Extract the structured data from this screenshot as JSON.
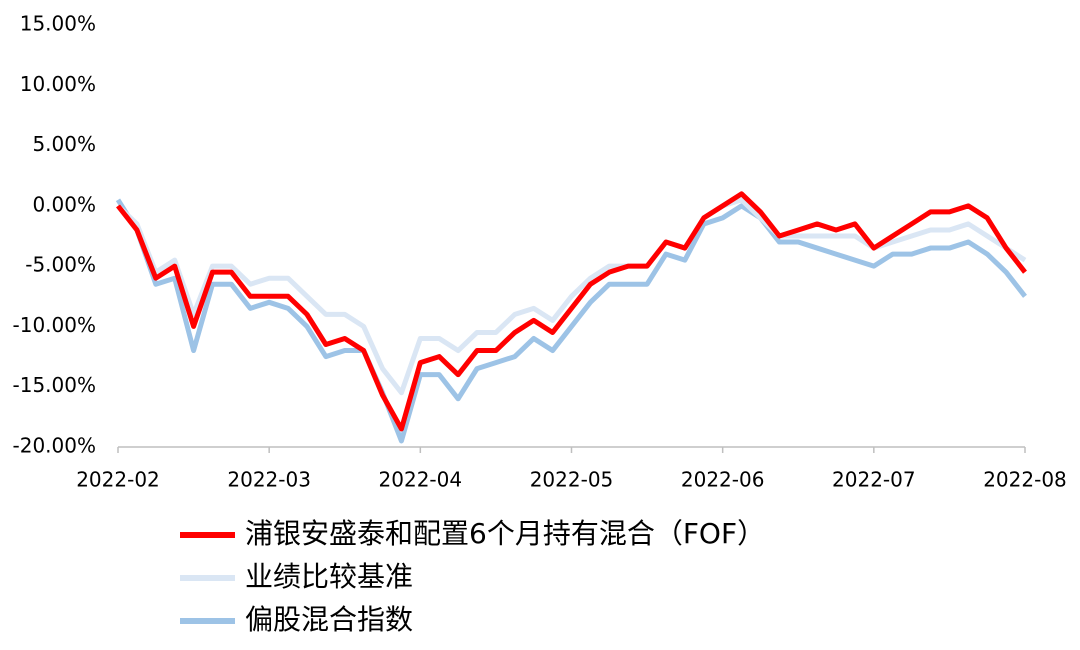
{
  "chart_data": {
    "type": "line",
    "categories": [
      "2022-02",
      null,
      null,
      null,
      null,
      null,
      null,
      null,
      "2022-03",
      null,
      null,
      null,
      null,
      null,
      null,
      null,
      "2022-04",
      null,
      null,
      null,
      null,
      null,
      null,
      null,
      "2022-05",
      null,
      null,
      null,
      null,
      null,
      null,
      null,
      "2022-06",
      null,
      null,
      null,
      null,
      null,
      null,
      null,
      "2022-07",
      null,
      null,
      null,
      null,
      null,
      null,
      null,
      "2022-08"
    ],
    "series": [
      {
        "name": "浦银安盛泰和配置6个月持有混合（FOF）",
        "color": "#ff0000",
        "values": [
          0,
          -2,
          -6,
          -5,
          -10,
          -5.5,
          -5.5,
          -7.5,
          -7.5,
          -7.5,
          -9,
          -11.5,
          -11,
          -12,
          -15.7,
          -18.5,
          -13,
          -12.5,
          -14,
          -12,
          -12,
          -10.5,
          -9.5,
          -10.5,
          -8.5,
          -6.5,
          -5.5,
          -5,
          -5,
          -3,
          -3.5,
          -1,
          0,
          1,
          -0.5,
          -2.5,
          -2,
          -1.5,
          -2,
          -1.5,
          -3.5,
          -2.5,
          -1.5,
          -0.5,
          -0.5,
          0,
          -1,
          -3.5,
          -5.5
        ]
      },
      {
        "name": "业绩比较基准",
        "color": "#dae6f4",
        "values": [
          0,
          -1.5,
          -5.5,
          -4.5,
          -9,
          -5,
          -5,
          -6.5,
          -6,
          -6,
          -7.5,
          -9,
          -9,
          -10,
          -13.5,
          -15.5,
          -11,
          -11,
          -12,
          -10.5,
          -10.5,
          -9,
          -8.5,
          -9.5,
          -7.5,
          -6,
          -5,
          -5,
          -5,
          -3,
          -3.5,
          -1,
          0,
          0.5,
          -1,
          -2.5,
          -2.5,
          -2.5,
          -2.5,
          -2.5,
          -3.5,
          -3,
          -2.5,
          -2,
          -2,
          -1.5,
          -2.5,
          -3.5,
          -4.5
        ]
      },
      {
        "name": "偏股混合指数",
        "color": "#9dc3e6",
        "values": [
          0.5,
          -2,
          -6.5,
          -6,
          -12,
          -6.5,
          -6.5,
          -8.5,
          -8,
          -8.5,
          -10,
          -12.5,
          -12,
          -12,
          -15.5,
          -19.5,
          -14,
          -14,
          -16,
          -13.5,
          -13,
          -12.5,
          -11,
          -12,
          -10,
          -8,
          -6.5,
          -6.5,
          -6.5,
          -4,
          -4.5,
          -1.5,
          -1,
          0,
          -1,
          -3,
          -3,
          -3.5,
          -4,
          -4.5,
          -5,
          -4,
          -4,
          -3.5,
          -3.5,
          -3,
          -4,
          -5.5,
          -7.5
        ]
      }
    ],
    "ylim": [
      -20,
      15
    ],
    "yticks": [
      {
        "value": -20,
        "label": "-20.00%"
      },
      {
        "value": -15,
        "label": "-15.00%"
      },
      {
        "value": -10,
        "label": "-10.00%"
      },
      {
        "value": -5,
        "label": "-5.00%"
      },
      {
        "value": 0,
        "label": "0.00%"
      },
      {
        "value": 5,
        "label": "5.00%"
      },
      {
        "value": 10,
        "label": "10.00%"
      },
      {
        "value": 15,
        "label": "15.00%"
      }
    ]
  }
}
